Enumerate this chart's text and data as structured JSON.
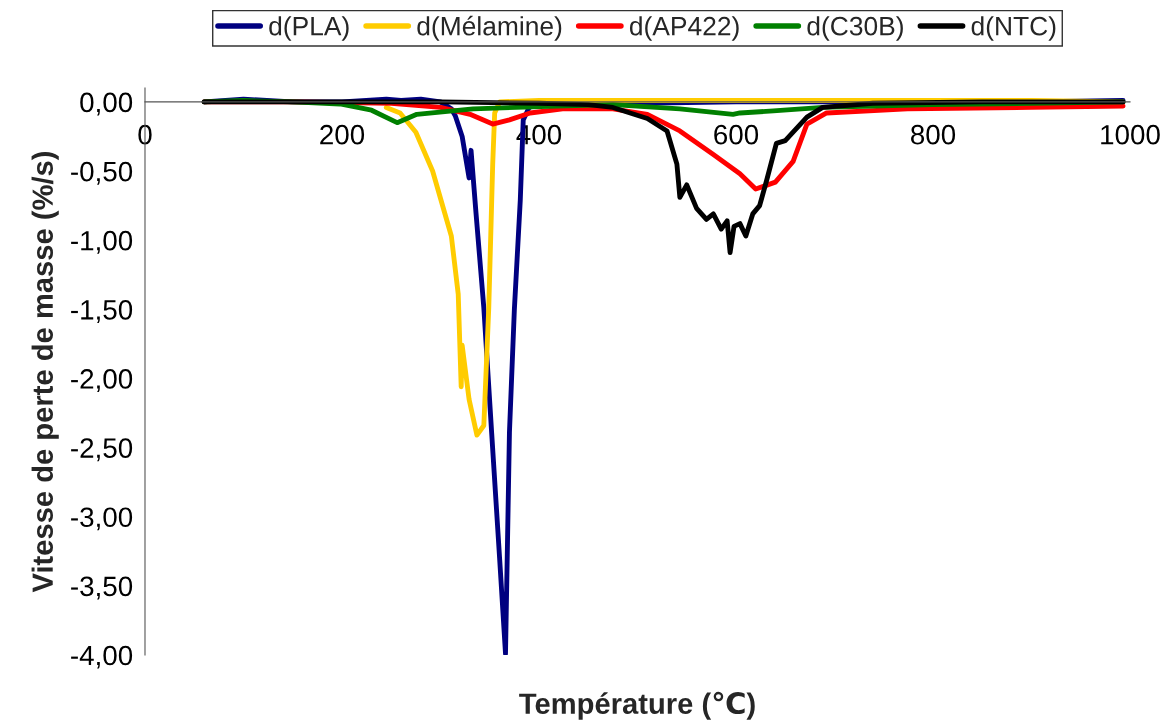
{
  "chart_data": {
    "type": "line",
    "xlabel": "Température (℃)",
    "ylabel": "Vitesse de perte de masse (%/s)",
    "xlim": [
      0,
      1000
    ],
    "ylim": [
      -4,
      0.1
    ],
    "xticks": [
      0,
      200,
      400,
      600,
      800,
      1000
    ],
    "yticks": [
      {
        "value": 0,
        "label": "0,00"
      },
      {
        "value": -0.5,
        "label": "-0,50"
      },
      {
        "value": -1,
        "label": "-1,00"
      },
      {
        "value": -1.5,
        "label": "-1,50"
      },
      {
        "value": -2,
        "label": "-2,00"
      },
      {
        "value": -2.5,
        "label": "-2,50"
      },
      {
        "value": -3,
        "label": "-3,00"
      },
      {
        "value": -3.5,
        "label": "-3,50"
      },
      {
        "value": -4,
        "label": "-4,00"
      }
    ],
    "grid": false,
    "legend": "top",
    "marker": "none",
    "line_style": "solid",
    "series": [
      {
        "name": "d(PLA)",
        "color": "#000080",
        "x": [
          60,
          100,
          150,
          200,
          245,
          260,
          280,
          300,
          311,
          315,
          322,
          329,
          331,
          336,
          344,
          352,
          360,
          366,
          370,
          375,
          381,
          384,
          390,
          400,
          500,
          600,
          700,
          800,
          900,
          993
        ],
        "values": [
          0,
          0.02,
          0,
          0,
          0.02,
          0.01,
          0.02,
          0,
          -0.05,
          -0.1,
          -0.25,
          -0.55,
          -0.35,
          -0.8,
          -1.49,
          -2.4,
          -3.3,
          -3.99,
          -2.39,
          -1.5,
          -0.71,
          -0.13,
          -0.04,
          -0.01,
          -0.01,
          0,
          0,
          0.01,
          0,
          0.01
        ]
      },
      {
        "name": "d(Mélamine)",
        "color": "#ffcc00",
        "x": [
          245,
          259,
          275,
          292,
          311,
          318,
          321,
          322,
          329,
          337,
          344,
          349,
          353,
          355,
          360,
          400,
          500,
          600,
          700,
          800,
          900,
          993
        ],
        "values": [
          -0.04,
          -0.08,
          -0.22,
          -0.5,
          -0.97,
          -1.39,
          -2.06,
          -1.76,
          -2.15,
          -2.41,
          -2.34,
          -1.49,
          -0.45,
          -0.08,
          0,
          0.01,
          0.01,
          0.01,
          0.01,
          0.01,
          0.01,
          0
        ]
      },
      {
        "name": "d(AP422)",
        "color": "#ff0000",
        "x": [
          60,
          150,
          250,
          300,
          330,
          353,
          370,
          391,
          424,
          475,
          510,
          543,
          577,
          604,
          620,
          640,
          658,
          672,
          692,
          774,
          900,
          993
        ],
        "values": [
          0,
          0,
          -0.01,
          -0.04,
          -0.09,
          -0.16,
          -0.13,
          -0.08,
          -0.05,
          -0.05,
          -0.09,
          -0.21,
          -0.38,
          -0.52,
          -0.63,
          -0.58,
          -0.43,
          -0.16,
          -0.08,
          -0.05,
          -0.04,
          -0.03
        ]
      },
      {
        "name": "d(C30B)",
        "color": "#008000",
        "x": [
          60,
          100,
          150,
          198,
          230,
          256,
          276,
          333,
          418,
          475,
          543,
          597,
          604,
          638,
          688,
          800,
          900,
          993
        ],
        "values": [
          0,
          0.01,
          0,
          -0.015,
          -0.06,
          -0.15,
          -0.09,
          -0.05,
          -0.03,
          -0.02,
          -0.05,
          -0.09,
          -0.08,
          -0.065,
          -0.04,
          -0.02,
          -0.01,
          0
        ]
      },
      {
        "name": "d(NTC)",
        "color": "#000000",
        "x": [
          60,
          200,
          300,
          400,
          450,
          475,
          510,
          530,
          540,
          543,
          550,
          560,
          570,
          577,
          585,
          591,
          594,
          598,
          604,
          610,
          617,
          624,
          631,
          641,
          650,
          672,
          688,
          739,
          850,
          993
        ],
        "values": [
          0,
          0,
          0,
          -0.01,
          -0.02,
          -0.04,
          -0.12,
          -0.21,
          -0.45,
          -0.69,
          -0.6,
          -0.77,
          -0.85,
          -0.81,
          -0.92,
          -0.86,
          -1.09,
          -0.9,
          -0.88,
          -0.97,
          -0.81,
          -0.75,
          -0.57,
          -0.3,
          -0.28,
          -0.11,
          -0.04,
          -0.01,
          0,
          0
        ]
      }
    ]
  }
}
